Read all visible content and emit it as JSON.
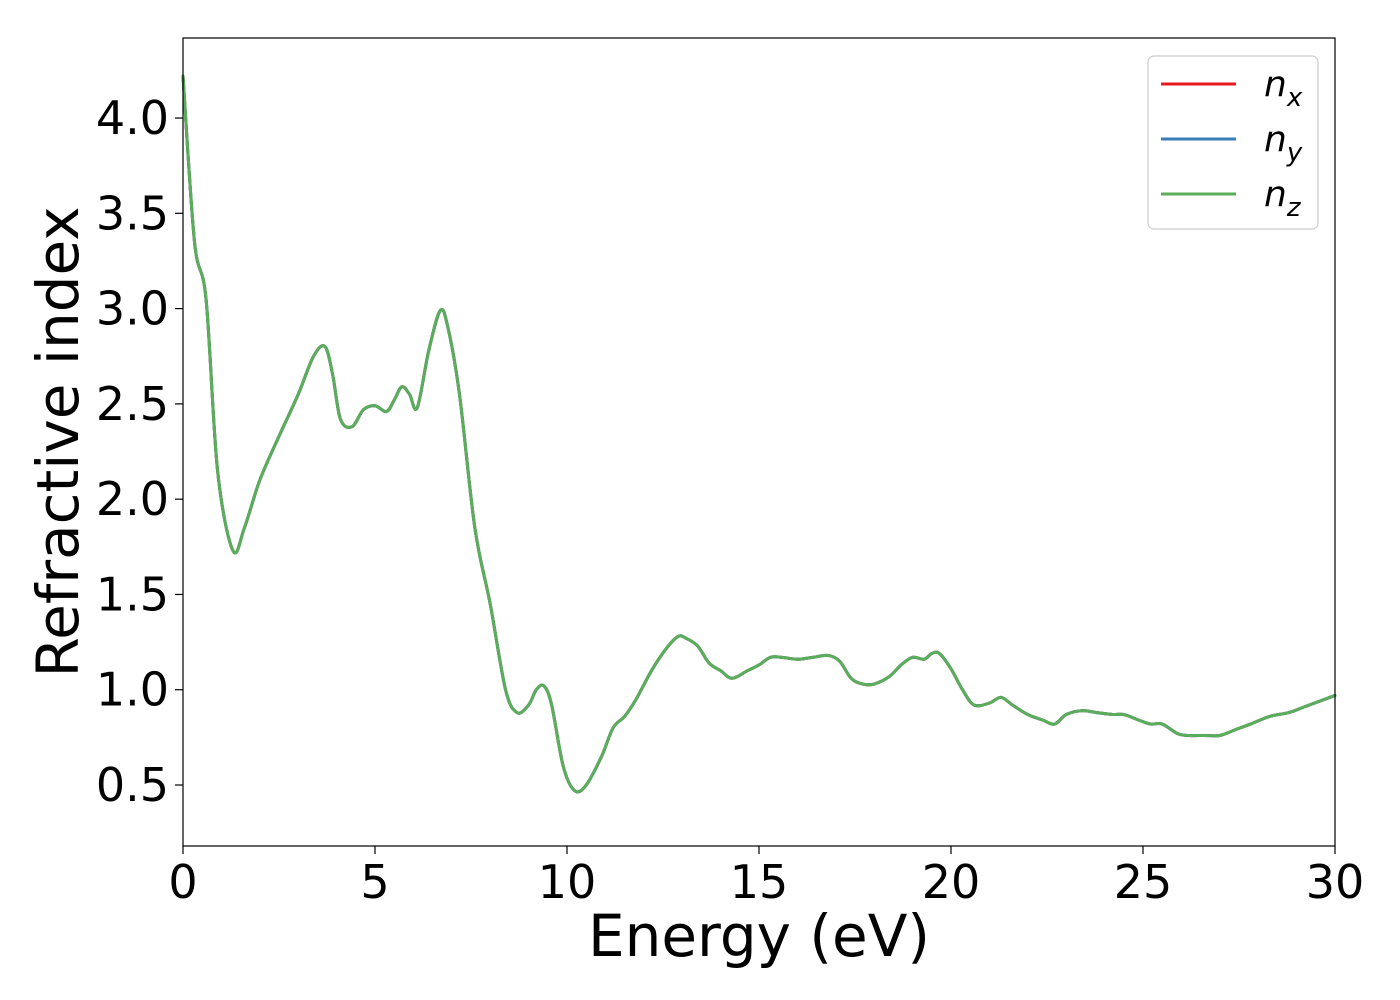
{
  "chart_data": {
    "type": "line",
    "xlabel": "Energy (eV)",
    "ylabel": "Refractive index",
    "xlim": [
      0,
      30
    ],
    "ylim": [
      0.18,
      4.42
    ],
    "xticks": [
      0,
      5,
      10,
      15,
      20,
      25,
      30
    ],
    "xtick_labels": [
      "0",
      "5",
      "10",
      "15",
      "20",
      "25",
      "30"
    ],
    "yticks": [
      0.5,
      1.0,
      1.5,
      2.0,
      2.5,
      3.0,
      3.5,
      4.0
    ],
    "ytick_labels": [
      "0.5",
      "1.0",
      "1.5",
      "2.0",
      "2.5",
      "3.0",
      "3.5",
      "4.0"
    ],
    "grid": false,
    "legend_position": "top-right",
    "x": [
      0,
      0.3,
      0.6,
      0.9,
      1.3,
      1.6,
      2.0,
      2.5,
      3.0,
      3.4,
      3.7,
      3.9,
      4.1,
      4.4,
      4.7,
      5.0,
      5.3,
      5.5,
      5.7,
      5.9,
      6.1,
      6.4,
      6.7,
      6.9,
      7.2,
      7.6,
      8.0,
      8.4,
      8.7,
      9.0,
      9.2,
      9.4,
      9.6,
      9.9,
      10.2,
      10.5,
      10.9,
      11.2,
      11.5,
      11.8,
      12.2,
      12.6,
      12.9,
      13.1,
      13.4,
      13.7,
      14.0,
      14.3,
      14.7,
      15.0,
      15.3,
      15.6,
      16.0,
      16.4,
      16.8,
      17.1,
      17.4,
      17.7,
      18.0,
      18.4,
      18.7,
      19.0,
      19.3,
      19.5,
      19.7,
      20.0,
      20.3,
      20.6,
      21.0,
      21.3,
      21.6,
      22.0,
      22.4,
      22.7,
      23.0,
      23.4,
      23.8,
      24.2,
      24.5,
      24.9,
      25.2,
      25.5,
      25.9,
      26.2,
      26.6,
      27.0,
      27.4,
      27.8,
      28.3,
      28.8,
      29.2,
      29.6,
      30.0
    ],
    "series": [
      {
        "name": "n_x",
        "color": "#e41a1c",
        "values": [
          4.22,
          3.35,
          3.05,
          2.15,
          1.73,
          1.85,
          2.1,
          2.33,
          2.55,
          2.75,
          2.8,
          2.65,
          2.42,
          2.38,
          2.47,
          2.49,
          2.46,
          2.52,
          2.59,
          2.55,
          2.48,
          2.78,
          2.99,
          2.9,
          2.55,
          1.85,
          1.45,
          1.0,
          0.88,
          0.92,
          1.0,
          1.02,
          0.92,
          0.6,
          0.47,
          0.5,
          0.65,
          0.8,
          0.86,
          0.95,
          1.1,
          1.22,
          1.28,
          1.27,
          1.23,
          1.14,
          1.1,
          1.06,
          1.1,
          1.13,
          1.17,
          1.17,
          1.16,
          1.17,
          1.18,
          1.15,
          1.06,
          1.03,
          1.03,
          1.07,
          1.13,
          1.17,
          1.16,
          1.19,
          1.19,
          1.11,
          1.0,
          0.92,
          0.93,
          0.96,
          0.92,
          0.87,
          0.84,
          0.82,
          0.87,
          0.89,
          0.88,
          0.87,
          0.87,
          0.84,
          0.82,
          0.82,
          0.77,
          0.76,
          0.76,
          0.76,
          0.79,
          0.82,
          0.86,
          0.88,
          0.91,
          0.94,
          0.97
        ]
      },
      {
        "name": "n_y",
        "color": "#377eb8",
        "values": [
          4.22,
          3.35,
          3.05,
          2.15,
          1.73,
          1.85,
          2.1,
          2.33,
          2.55,
          2.75,
          2.8,
          2.65,
          2.42,
          2.38,
          2.47,
          2.49,
          2.46,
          2.52,
          2.59,
          2.55,
          2.48,
          2.78,
          2.99,
          2.9,
          2.55,
          1.85,
          1.45,
          1.0,
          0.88,
          0.92,
          1.0,
          1.02,
          0.92,
          0.6,
          0.47,
          0.5,
          0.65,
          0.8,
          0.86,
          0.95,
          1.1,
          1.22,
          1.28,
          1.27,
          1.23,
          1.14,
          1.1,
          1.06,
          1.1,
          1.13,
          1.17,
          1.17,
          1.16,
          1.17,
          1.18,
          1.15,
          1.06,
          1.03,
          1.03,
          1.07,
          1.13,
          1.17,
          1.16,
          1.19,
          1.19,
          1.11,
          1.0,
          0.92,
          0.93,
          0.96,
          0.92,
          0.87,
          0.84,
          0.82,
          0.87,
          0.89,
          0.88,
          0.87,
          0.87,
          0.84,
          0.82,
          0.82,
          0.77,
          0.76,
          0.76,
          0.76,
          0.79,
          0.82,
          0.86,
          0.88,
          0.91,
          0.94,
          0.97
        ]
      },
      {
        "name": "n_z",
        "color": "#5aad5a",
        "values": [
          4.22,
          3.35,
          3.05,
          2.15,
          1.73,
          1.85,
          2.1,
          2.33,
          2.55,
          2.75,
          2.8,
          2.65,
          2.42,
          2.38,
          2.47,
          2.49,
          2.46,
          2.52,
          2.59,
          2.55,
          2.48,
          2.78,
          2.99,
          2.9,
          2.55,
          1.85,
          1.45,
          1.0,
          0.88,
          0.92,
          1.0,
          1.02,
          0.92,
          0.6,
          0.47,
          0.5,
          0.65,
          0.8,
          0.86,
          0.95,
          1.1,
          1.22,
          1.28,
          1.27,
          1.23,
          1.14,
          1.1,
          1.06,
          1.1,
          1.13,
          1.17,
          1.17,
          1.16,
          1.17,
          1.18,
          1.15,
          1.06,
          1.03,
          1.03,
          1.07,
          1.13,
          1.17,
          1.16,
          1.19,
          1.19,
          1.11,
          1.0,
          0.92,
          0.93,
          0.96,
          0.92,
          0.87,
          0.84,
          0.82,
          0.87,
          0.89,
          0.88,
          0.87,
          0.87,
          0.84,
          0.82,
          0.82,
          0.77,
          0.76,
          0.76,
          0.76,
          0.79,
          0.82,
          0.86,
          0.88,
          0.91,
          0.94,
          0.97
        ]
      }
    ],
    "legend": [
      {
        "base": "n",
        "sub": "x",
        "color": "#e41a1c"
      },
      {
        "base": "n",
        "sub": "y",
        "color": "#377eb8"
      },
      {
        "base": "n",
        "sub": "z",
        "color": "#5aad5a"
      }
    ]
  }
}
